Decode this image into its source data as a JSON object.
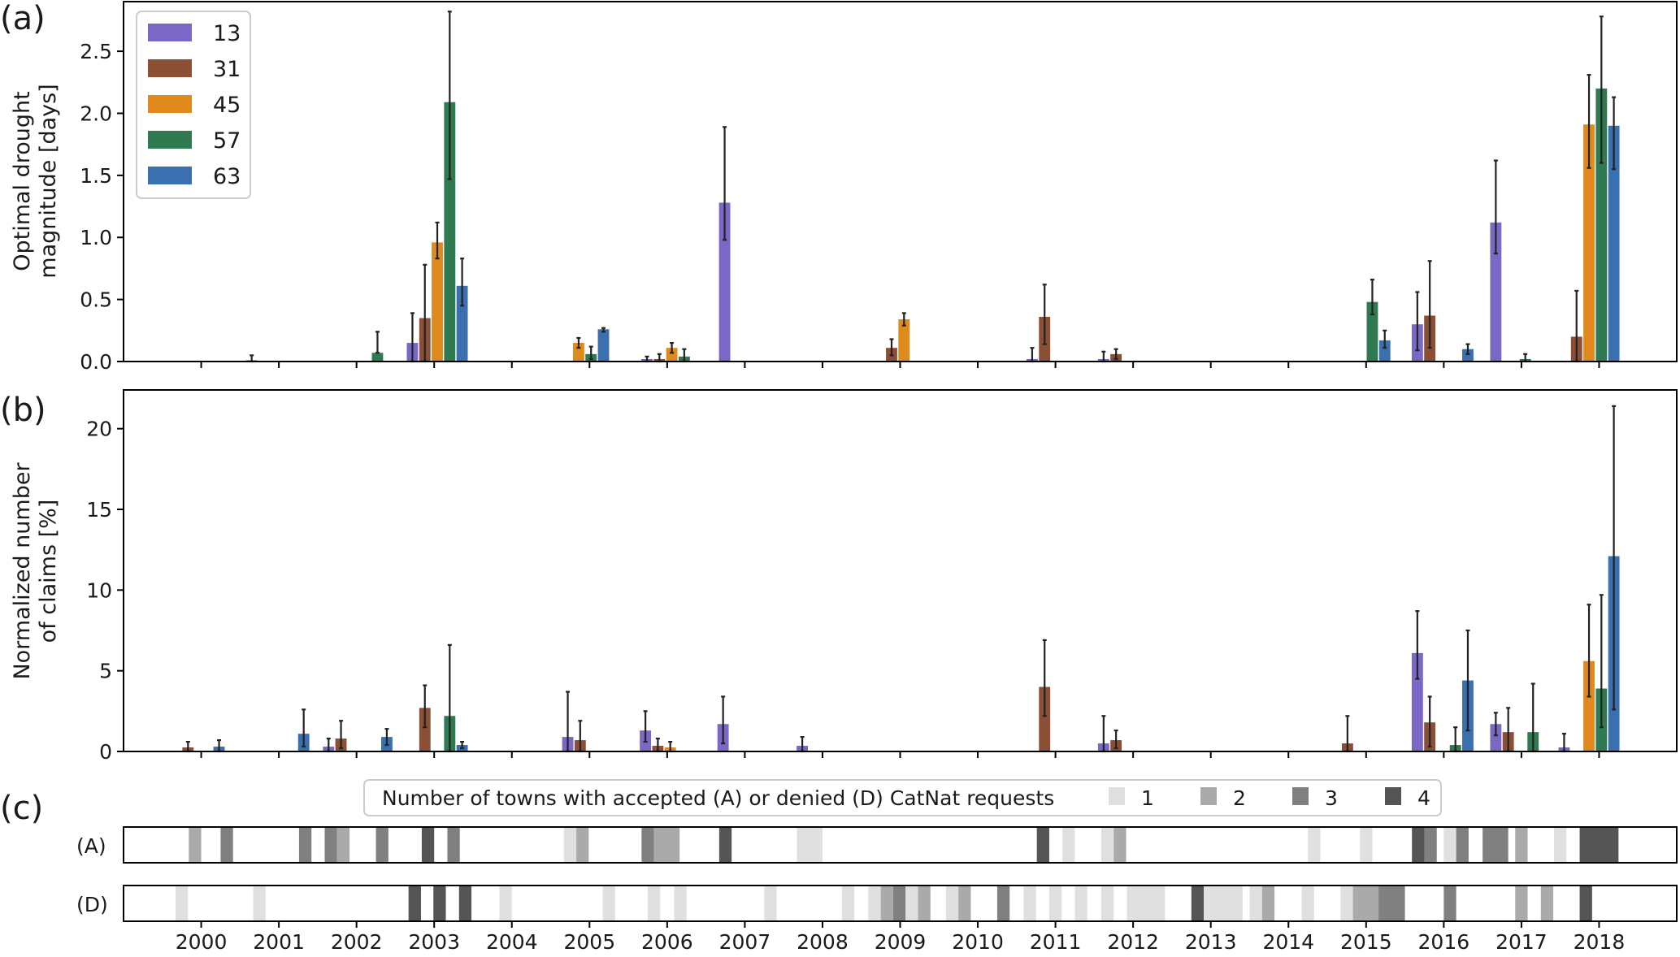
{
  "figure": {
    "panel_labels": [
      "(a)",
      "(b)",
      "(c)"
    ],
    "years": [
      "2000",
      "2001",
      "2002",
      "2003",
      "2004",
      "2005",
      "2006",
      "2007",
      "2008",
      "2009",
      "2010",
      "2011",
      "2012",
      "2013",
      "2014",
      "2015",
      "2016",
      "2017",
      "2018"
    ]
  },
  "colors": {
    "13": "#7b68c6",
    "31": "#8b4f36",
    "45": "#e08a1e",
    "57": "#2f7a50",
    "63": "#3a6fb0",
    "errorbar": "#222222",
    "axis": "#000000",
    "level1": "#e0e0e0",
    "level2": "#aaaaaa",
    "level3": "#808080",
    "level4": "#555555"
  },
  "legend": {
    "entries": [
      {
        "key": "13",
        "label": "13"
      },
      {
        "key": "31",
        "label": "31"
      },
      {
        "key": "45",
        "label": "45"
      },
      {
        "key": "57",
        "label": "57"
      },
      {
        "key": "63",
        "label": "63"
      }
    ],
    "placement": "upper-left"
  },
  "chart_data": [
    {
      "type": "bar",
      "panel": "(a)",
      "ylabel_line1": "Optimal drought",
      "ylabel_line2": "magnitude [days]",
      "ylim": [
        0,
        2.9
      ],
      "yticks": [
        "0.0",
        "0.5",
        "1.0",
        "1.5",
        "2.0",
        "2.5"
      ],
      "ytick_values": [
        0,
        0.5,
        1.0,
        1.5,
        2.0,
        2.5
      ],
      "x_unit": "year (decimal)",
      "bars": [
        {
          "series": "31",
          "x": 2000.65,
          "value": 0.01,
          "err_lo": 0.0,
          "err_hi": 0.05
        },
        {
          "series": "57",
          "x": 2002.27,
          "value": 0.07,
          "err_lo": 0.07,
          "err_hi": 0.24
        },
        {
          "series": "13",
          "x": 2002.72,
          "value": 0.15,
          "err_lo": 0.0,
          "err_hi": 0.39
        },
        {
          "series": "31",
          "x": 2002.88,
          "value": 0.35,
          "err_lo": 0.0,
          "err_hi": 0.78
        },
        {
          "series": "45",
          "x": 2003.04,
          "value": 0.96,
          "err_lo": 0.83,
          "err_hi": 1.12
        },
        {
          "series": "57",
          "x": 2003.2,
          "value": 2.09,
          "err_lo": 1.47,
          "err_hi": 2.82
        },
        {
          "series": "63",
          "x": 2003.36,
          "value": 0.61,
          "err_lo": 0.45,
          "err_hi": 0.83
        },
        {
          "series": "45",
          "x": 2004.86,
          "value": 0.15,
          "err_lo": 0.11,
          "err_hi": 0.19
        },
        {
          "series": "57",
          "x": 2005.02,
          "value": 0.06,
          "err_lo": 0.02,
          "err_hi": 0.12
        },
        {
          "series": "63",
          "x": 2005.18,
          "value": 0.26,
          "err_lo": 0.24,
          "err_hi": 0.27
        },
        {
          "series": "13",
          "x": 2005.74,
          "value": 0.02,
          "err_lo": 0.0,
          "err_hi": 0.04
        },
        {
          "series": "31",
          "x": 2005.9,
          "value": 0.02,
          "err_lo": 0.0,
          "err_hi": 0.06
        },
        {
          "series": "45",
          "x": 2006.06,
          "value": 0.11,
          "err_lo": 0.07,
          "err_hi": 0.15
        },
        {
          "series": "57",
          "x": 2006.22,
          "value": 0.04,
          "err_lo": 0.0,
          "err_hi": 0.1
        },
        {
          "series": "13",
          "x": 2006.74,
          "value": 1.28,
          "err_lo": 0.98,
          "err_hi": 1.89
        },
        {
          "series": "31",
          "x": 2008.89,
          "value": 0.11,
          "err_lo": 0.05,
          "err_hi": 0.18
        },
        {
          "series": "45",
          "x": 2009.05,
          "value": 0.34,
          "err_lo": 0.29,
          "err_hi": 0.39
        },
        {
          "series": "13",
          "x": 2010.7,
          "value": 0.02,
          "err_lo": 0.0,
          "err_hi": 0.11
        },
        {
          "series": "31",
          "x": 2010.86,
          "value": 0.36,
          "err_lo": 0.14,
          "err_hi": 0.62
        },
        {
          "series": "13",
          "x": 2011.62,
          "value": 0.02,
          "err_lo": 0.0,
          "err_hi": 0.08
        },
        {
          "series": "31",
          "x": 2011.78,
          "value": 0.06,
          "err_lo": 0.02,
          "err_hi": 0.1
        },
        {
          "series": "57",
          "x": 2015.08,
          "value": 0.48,
          "err_lo": 0.38,
          "err_hi": 0.66
        },
        {
          "series": "63",
          "x": 2015.24,
          "value": 0.17,
          "err_lo": 0.11,
          "err_hi": 0.25
        },
        {
          "series": "13",
          "x": 2015.66,
          "value": 0.3,
          "err_lo": 0.09,
          "err_hi": 0.56
        },
        {
          "series": "31",
          "x": 2015.82,
          "value": 0.37,
          "err_lo": 0.11,
          "err_hi": 0.81
        },
        {
          "series": "63",
          "x": 2016.31,
          "value": 0.1,
          "err_lo": 0.06,
          "err_hi": 0.14
        },
        {
          "series": "13",
          "x": 2016.67,
          "value": 1.12,
          "err_lo": 0.87,
          "err_hi": 1.62
        },
        {
          "series": "57",
          "x": 2017.05,
          "value": 0.02,
          "err_lo": 0.0,
          "err_hi": 0.06
        },
        {
          "series": "31",
          "x": 2017.71,
          "value": 0.2,
          "err_lo": 0.0,
          "err_hi": 0.57
        },
        {
          "series": "45",
          "x": 2017.87,
          "value": 1.91,
          "err_lo": 1.56,
          "err_hi": 2.31
        },
        {
          "series": "57",
          "x": 2018.03,
          "value": 2.2,
          "err_lo": 1.6,
          "err_hi": 2.78
        },
        {
          "series": "63",
          "x": 2018.19,
          "value": 1.9,
          "err_lo": 1.55,
          "err_hi": 2.13
        }
      ]
    },
    {
      "type": "bar",
      "panel": "(b)",
      "ylabel_line1": "Normalized number",
      "ylabel_line2": "of claims [%]",
      "ylim": [
        0,
        22.4
      ],
      "yticks": [
        "0",
        "5",
        "10",
        "15",
        "20"
      ],
      "ytick_values": [
        0,
        5,
        10,
        15,
        20
      ],
      "x_unit": "year (decimal)",
      "bars": [
        {
          "series": "31",
          "x": 1999.83,
          "value": 0.25,
          "err_lo": 0.0,
          "err_hi": 0.6
        },
        {
          "series": "63",
          "x": 2000.23,
          "value": 0.3,
          "err_lo": 0.0,
          "err_hi": 0.7
        },
        {
          "series": "63",
          "x": 2001.32,
          "value": 1.1,
          "err_lo": 0.3,
          "err_hi": 2.6
        },
        {
          "series": "13",
          "x": 2001.64,
          "value": 0.3,
          "err_lo": 0.0,
          "err_hi": 0.8
        },
        {
          "series": "31",
          "x": 2001.8,
          "value": 0.8,
          "err_lo": 0.2,
          "err_hi": 1.9
        },
        {
          "series": "63",
          "x": 2002.39,
          "value": 0.9,
          "err_lo": 0.4,
          "err_hi": 1.4
        },
        {
          "series": "31",
          "x": 2002.88,
          "value": 2.7,
          "err_lo": 1.5,
          "err_hi": 4.1
        },
        {
          "series": "57",
          "x": 2003.2,
          "value": 2.2,
          "err_lo": 0.0,
          "err_hi": 6.6
        },
        {
          "series": "63",
          "x": 2003.36,
          "value": 0.4,
          "err_lo": 0.2,
          "err_hi": 0.6
        },
        {
          "series": "13",
          "x": 2004.72,
          "value": 0.9,
          "err_lo": 0.0,
          "err_hi": 3.7
        },
        {
          "series": "31",
          "x": 2004.88,
          "value": 0.7,
          "err_lo": 0.0,
          "err_hi": 1.9
        },
        {
          "series": "13",
          "x": 2005.72,
          "value": 1.3,
          "err_lo": 0.6,
          "err_hi": 2.5
        },
        {
          "series": "31",
          "x": 2005.88,
          "value": 0.35,
          "err_lo": 0.0,
          "err_hi": 0.8
        },
        {
          "series": "45",
          "x": 2006.04,
          "value": 0.25,
          "err_lo": 0.0,
          "err_hi": 0.6
        },
        {
          "series": "13",
          "x": 2006.72,
          "value": 1.7,
          "err_lo": 0.5,
          "err_hi": 3.4
        },
        {
          "series": "13",
          "x": 2007.74,
          "value": 0.35,
          "err_lo": 0.0,
          "err_hi": 0.9
        },
        {
          "series": "31",
          "x": 2010.86,
          "value": 4.0,
          "err_lo": 2.2,
          "err_hi": 6.9
        },
        {
          "series": "13",
          "x": 2011.62,
          "value": 0.5,
          "err_lo": 0.0,
          "err_hi": 2.2
        },
        {
          "series": "31",
          "x": 2011.78,
          "value": 0.7,
          "err_lo": 0.2,
          "err_hi": 1.3
        },
        {
          "series": "31",
          "x": 2014.76,
          "value": 0.5,
          "err_lo": 0.0,
          "err_hi": 2.2
        },
        {
          "series": "13",
          "x": 2015.66,
          "value": 6.1,
          "err_lo": 4.5,
          "err_hi": 8.7
        },
        {
          "series": "31",
          "x": 2015.82,
          "value": 1.8,
          "err_lo": 0.3,
          "err_hi": 3.4
        },
        {
          "series": "57",
          "x": 2016.15,
          "value": 0.4,
          "err_lo": 0.0,
          "err_hi": 1.5
        },
        {
          "series": "63",
          "x": 2016.31,
          "value": 4.4,
          "err_lo": 1.3,
          "err_hi": 7.5
        },
        {
          "series": "13",
          "x": 2016.67,
          "value": 1.7,
          "err_lo": 1.0,
          "err_hi": 2.4
        },
        {
          "series": "31",
          "x": 2016.83,
          "value": 1.2,
          "err_lo": 0.0,
          "err_hi": 2.7
        },
        {
          "series": "57",
          "x": 2017.15,
          "value": 1.2,
          "err_lo": 0.0,
          "err_hi": 4.2
        },
        {
          "series": "13",
          "x": 2017.55,
          "value": 0.25,
          "err_lo": 0.0,
          "err_hi": 1.1
        },
        {
          "series": "45",
          "x": 2017.87,
          "value": 5.6,
          "err_lo": 3.4,
          "err_hi": 9.1
        },
        {
          "series": "57",
          "x": 2018.03,
          "value": 3.9,
          "err_lo": 1.5,
          "err_hi": 9.7
        },
        {
          "series": "63",
          "x": 2018.19,
          "value": 12.1,
          "err_lo": 2.6,
          "err_hi": 21.4
        }
      ]
    },
    {
      "type": "heatmap",
      "panel": "(c)",
      "legend_title": "Number of towns with accepted (A) or denied (D) CatNat requests",
      "levels": [
        "1",
        "2",
        "3",
        "4"
      ],
      "rows": [
        {
          "label": "(A)",
          "cells": [
            {
              "start": 1999.84,
              "end": 2000.0,
              "level": 2
            },
            {
              "start": 2000.25,
              "end": 2000.41,
              "level": 3
            },
            {
              "start": 2001.26,
              "end": 2001.42,
              "level": 3
            },
            {
              "start": 2001.59,
              "end": 2001.75,
              "level": 3
            },
            {
              "start": 2001.75,
              "end": 2001.91,
              "level": 2
            },
            {
              "start": 2002.25,
              "end": 2002.41,
              "level": 3
            },
            {
              "start": 2002.84,
              "end": 2003.0,
              "level": 4
            },
            {
              "start": 2003.17,
              "end": 2003.33,
              "level": 3
            },
            {
              "start": 2004.67,
              "end": 2004.83,
              "level": 1
            },
            {
              "start": 2004.83,
              "end": 2004.99,
              "level": 2
            },
            {
              "start": 2005.67,
              "end": 2005.83,
              "level": 3
            },
            {
              "start": 2005.83,
              "end": 2006.16,
              "level": 2
            },
            {
              "start": 2006.67,
              "end": 2006.83,
              "level": 4
            },
            {
              "start": 2007.67,
              "end": 2008.0,
              "level": 1
            },
            {
              "start": 2010.76,
              "end": 2010.92,
              "level": 4
            },
            {
              "start": 2011.09,
              "end": 2011.25,
              "level": 1
            },
            {
              "start": 2011.59,
              "end": 2011.75,
              "level": 1
            },
            {
              "start": 2011.75,
              "end": 2011.91,
              "level": 2
            },
            {
              "start": 2014.25,
              "end": 2014.41,
              "level": 1
            },
            {
              "start": 2014.92,
              "end": 2015.08,
              "level": 1
            },
            {
              "start": 2015.59,
              "end": 2015.75,
              "level": 4
            },
            {
              "start": 2015.75,
              "end": 2015.91,
              "level": 3
            },
            {
              "start": 2016.0,
              "end": 2016.16,
              "level": 1
            },
            {
              "start": 2016.16,
              "end": 2016.32,
              "level": 3
            },
            {
              "start": 2016.5,
              "end": 2016.83,
              "level": 3
            },
            {
              "start": 2016.92,
              "end": 2017.08,
              "level": 2
            },
            {
              "start": 2017.42,
              "end": 2017.58,
              "level": 1
            },
            {
              "start": 2017.75,
              "end": 2018.25,
              "level": 4
            }
          ]
        },
        {
          "label": "(D)",
          "cells": [
            {
              "start": 1999.67,
              "end": 1999.83,
              "level": 1
            },
            {
              "start": 2000.67,
              "end": 2000.83,
              "level": 1
            },
            {
              "start": 2002.67,
              "end": 2002.83,
              "level": 4
            },
            {
              "start": 2002.99,
              "end": 2003.15,
              "level": 4
            },
            {
              "start": 2003.32,
              "end": 2003.48,
              "level": 4
            },
            {
              "start": 2003.84,
              "end": 2004.0,
              "level": 1
            },
            {
              "start": 2005.17,
              "end": 2005.33,
              "level": 1
            },
            {
              "start": 2005.75,
              "end": 2005.91,
              "level": 1
            },
            {
              "start": 2006.09,
              "end": 2006.25,
              "level": 1
            },
            {
              "start": 2007.25,
              "end": 2007.41,
              "level": 1
            },
            {
              "start": 2008.25,
              "end": 2008.41,
              "level": 1
            },
            {
              "start": 2008.59,
              "end": 2008.75,
              "level": 1
            },
            {
              "start": 2008.75,
              "end": 2008.91,
              "level": 2
            },
            {
              "start": 2008.91,
              "end": 2009.07,
              "level": 3
            },
            {
              "start": 2009.07,
              "end": 2009.23,
              "level": 1
            },
            {
              "start": 2009.23,
              "end": 2009.39,
              "level": 2
            },
            {
              "start": 2009.59,
              "end": 2009.75,
              "level": 1
            },
            {
              "start": 2009.75,
              "end": 2009.91,
              "level": 2
            },
            {
              "start": 2010.25,
              "end": 2010.41,
              "level": 3
            },
            {
              "start": 2010.59,
              "end": 2010.75,
              "level": 1
            },
            {
              "start": 2010.92,
              "end": 2011.08,
              "level": 1
            },
            {
              "start": 2011.25,
              "end": 2011.41,
              "level": 1
            },
            {
              "start": 2011.59,
              "end": 2011.75,
              "level": 1
            },
            {
              "start": 2011.92,
              "end": 2012.41,
              "level": 1
            },
            {
              "start": 2012.75,
              "end": 2012.91,
              "level": 4
            },
            {
              "start": 2012.91,
              "end": 2013.41,
              "level": 1
            },
            {
              "start": 2013.5,
              "end": 2013.66,
              "level": 1
            },
            {
              "start": 2013.66,
              "end": 2013.82,
              "level": 2
            },
            {
              "start": 2014.17,
              "end": 2014.33,
              "level": 1
            },
            {
              "start": 2014.67,
              "end": 2014.83,
              "level": 1
            },
            {
              "start": 2014.83,
              "end": 2015.16,
              "level": 2
            },
            {
              "start": 2015.16,
              "end": 2015.5,
              "level": 3
            },
            {
              "start": 2016.0,
              "end": 2016.16,
              "level": 3
            },
            {
              "start": 2016.92,
              "end": 2017.08,
              "level": 2
            },
            {
              "start": 2017.25,
              "end": 2017.41,
              "level": 2
            },
            {
              "start": 2017.75,
              "end": 2017.91,
              "level": 4
            }
          ]
        }
      ]
    }
  ]
}
